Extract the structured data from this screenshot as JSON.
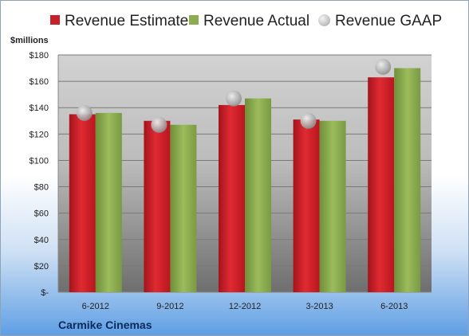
{
  "legend": {
    "estimate": "Revenue Estimate",
    "actual": "Revenue Actual",
    "gaap": "Revenue GAAP"
  },
  "unit_label": "$millions",
  "footer": "Carmike Cinemas",
  "colors": {
    "estimate": "#c8202a",
    "actual": "#8bad50",
    "gaap": "#bdbdbd"
  },
  "chart_data": {
    "type": "bar",
    "categories": [
      "6-2012",
      "9-2012",
      "12-2012",
      "3-2013",
      "6-2013"
    ],
    "series": [
      {
        "name": "Revenue Estimate",
        "values": [
          135,
          130,
          142,
          131,
          163
        ]
      },
      {
        "name": "Revenue Actual",
        "values": [
          136,
          127,
          147,
          130,
          170
        ]
      },
      {
        "name": "Revenue GAAP",
        "values": [
          136,
          127,
          147,
          130,
          171
        ]
      }
    ],
    "ylabel": "$millions",
    "ylim": [
      0,
      180
    ],
    "yticks": [
      0,
      20,
      40,
      60,
      80,
      100,
      120,
      140,
      160,
      180
    ],
    "ytick_labels": [
      "$-",
      "$20",
      "$40",
      "$60",
      "$80",
      "$100",
      "$120",
      "$140",
      "$160",
      "$180"
    ],
    "grid": true,
    "legend_position": "top"
  }
}
